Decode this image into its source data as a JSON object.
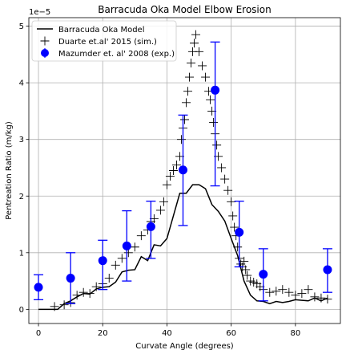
{
  "chart_data": {
    "type": "line",
    "title": "Barracuda Oka Model Elbow Erosion",
    "xlabel": "Curvate Angle (degrees)",
    "ylabel": "Pentreation Ratio (m/kg)",
    "y_scale_label": "1e−5",
    "xlim": [
      -3,
      94
    ],
    "ylim": [
      -0.25,
      5.15
    ],
    "grid": true,
    "legend_position": "upper-left",
    "x_ticks": [
      0,
      20,
      40,
      60,
      80
    ],
    "x_tick_labels": [
      "0",
      "20",
      "40",
      "60",
      "80"
    ],
    "y_ticks": [
      0,
      1,
      2,
      3,
      4,
      5
    ],
    "y_tick_labels": [
      "0",
      "1",
      "2",
      "3",
      "4",
      "5"
    ],
    "series": [
      {
        "name": "Barracuda Oka Model",
        "kind": "line",
        "color": "#000000",
        "x": [
          0,
          6,
          8,
          10,
          12,
          14,
          16,
          18,
          20,
          22,
          24,
          26,
          28,
          30,
          32,
          34,
          36,
          38,
          40,
          42,
          44,
          46,
          48,
          50,
          52,
          54,
          56,
          58,
          60,
          62,
          64,
          66,
          68,
          70,
          72,
          74,
          76,
          78,
          80,
          82,
          84,
          86,
          88,
          90
        ],
        "y": [
          0.0,
          0.0,
          0.1,
          0.15,
          0.22,
          0.28,
          0.27,
          0.36,
          0.39,
          0.4,
          0.48,
          0.66,
          0.69,
          0.7,
          0.93,
          0.86,
          1.14,
          1.12,
          1.25,
          1.65,
          2.05,
          2.05,
          2.2,
          2.2,
          2.13,
          1.85,
          1.73,
          1.56,
          1.25,
          0.95,
          0.5,
          0.25,
          0.15,
          0.14,
          0.1,
          0.14,
          0.12,
          0.14,
          0.17,
          0.16,
          0.15,
          0.2,
          0.15,
          0.2
        ]
      },
      {
        "name": "Duarte et.al' 2015 (sim.)",
        "kind": "scatter",
        "marker": "plus",
        "color": "#000000",
        "x": [
          5,
          8,
          10,
          12,
          14,
          16,
          18,
          20,
          22,
          24,
          26,
          28,
          30,
          32,
          34,
          35,
          36,
          38,
          39,
          40,
          41,
          42,
          43,
          44,
          44.5,
          45,
          45.5,
          46,
          46.5,
          47,
          47.5,
          48,
          48.5,
          49,
          50,
          51,
          52,
          53,
          53.5,
          54,
          54.5,
          55,
          55.5,
          56,
          57,
          58,
          59,
          60,
          60.5,
          61,
          61.5,
          62,
          62.5,
          63,
          63.5,
          64,
          64.5,
          65,
          66,
          67,
          68,
          69,
          70,
          72,
          74,
          76,
          78,
          80,
          82,
          84,
          86,
          88,
          90
        ],
        "y": [
          0.05,
          0.08,
          0.12,
          0.25,
          0.3,
          0.28,
          0.4,
          0.45,
          0.55,
          0.78,
          0.9,
          1.0,
          1.1,
          1.3,
          1.4,
          1.55,
          1.6,
          1.75,
          1.9,
          2.2,
          2.35,
          2.45,
          2.55,
          2.7,
          3.0,
          3.2,
          3.35,
          3.65,
          3.85,
          4.1,
          4.35,
          4.55,
          4.7,
          4.85,
          4.55,
          4.3,
          4.1,
          3.85,
          3.7,
          3.5,
          3.3,
          3.1,
          2.9,
          2.7,
          2.5,
          2.3,
          2.1,
          1.9,
          1.65,
          1.45,
          1.3,
          1.1,
          0.9,
          0.8,
          0.75,
          0.85,
          0.7,
          0.6,
          0.5,
          0.48,
          0.45,
          0.4,
          0.35,
          0.3,
          0.32,
          0.35,
          0.3,
          0.25,
          0.28,
          0.35,
          0.22,
          0.2,
          0.18
        ]
      },
      {
        "name": "Mazumder et. al' 2008 (exp.)",
        "kind": "errorbar",
        "marker": "circle",
        "color": "#0000ff",
        "x": [
          0,
          10,
          20,
          27.5,
          35,
          45,
          55,
          62.5,
          70,
          90
        ],
        "y": [
          0.39,
          0.55,
          0.86,
          1.12,
          1.46,
          2.46,
          3.87,
          1.36,
          0.62,
          0.7
        ],
        "y_low": [
          0.17,
          0.1,
          0.35,
          0.5,
          0.9,
          1.48,
          2.18,
          0.75,
          0.15,
          0.3
        ],
        "y_high": [
          0.61,
          1.0,
          1.22,
          1.74,
          1.91,
          3.43,
          4.72,
          1.91,
          1.07,
          1.07
        ]
      }
    ]
  }
}
